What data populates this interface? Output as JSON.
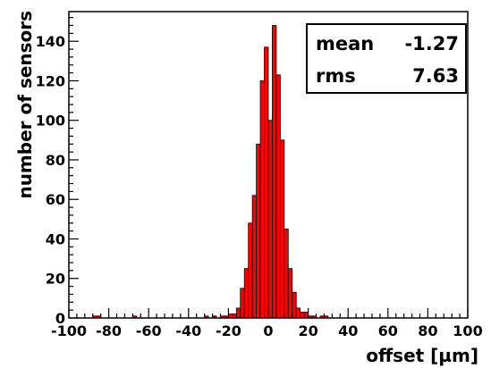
{
  "chart_data": {
    "type": "bar",
    "subtype": "histogram",
    "xlabel": "offset [µm]",
    "ylabel": "number of sensors",
    "xlim": [
      -100,
      100
    ],
    "ylim": [
      0,
      155
    ],
    "bin_width": 2,
    "x_ticks": [
      -100,
      -80,
      -60,
      -40,
      -20,
      0,
      20,
      40,
      60,
      80,
      100
    ],
    "y_ticks": [
      0,
      20,
      40,
      60,
      80,
      100,
      120,
      140
    ],
    "grid": false,
    "bar_color": "#ff0000",
    "edge_color": "#000000",
    "bins": [
      {
        "x": -88,
        "y": 1
      },
      {
        "x": -86,
        "y": 1
      },
      {
        "x": -68,
        "y": 1
      },
      {
        "x": -32,
        "y": 1
      },
      {
        "x": -28,
        "y": 1
      },
      {
        "x": -24,
        "y": 1
      },
      {
        "x": -22,
        "y": 1
      },
      {
        "x": -20,
        "y": 2
      },
      {
        "x": -18,
        "y": 2
      },
      {
        "x": -16,
        "y": 5
      },
      {
        "x": -14,
        "y": 15
      },
      {
        "x": -12,
        "y": 25
      },
      {
        "x": -10,
        "y": 48
      },
      {
        "x": -8,
        "y": 62
      },
      {
        "x": -6,
        "y": 88
      },
      {
        "x": -4,
        "y": 120
      },
      {
        "x": -2,
        "y": 137
      },
      {
        "x": 0,
        "y": 100
      },
      {
        "x": 2,
        "y": 148
      },
      {
        "x": 4,
        "y": 123
      },
      {
        "x": 6,
        "y": 90
      },
      {
        "x": 8,
        "y": 45
      },
      {
        "x": 10,
        "y": 25
      },
      {
        "x": 12,
        "y": 13
      },
      {
        "x": 14,
        "y": 5
      },
      {
        "x": 16,
        "y": 3
      },
      {
        "x": 18,
        "y": 3
      },
      {
        "x": 20,
        "y": 1
      },
      {
        "x": 22,
        "y": 1
      },
      {
        "x": 26,
        "y": 1
      },
      {
        "x": 28,
        "y": 1
      }
    ],
    "stats": {
      "mean_label": "mean",
      "mean_value": "-1.27",
      "rms_label": "rms",
      "rms_value": "7.63"
    }
  }
}
